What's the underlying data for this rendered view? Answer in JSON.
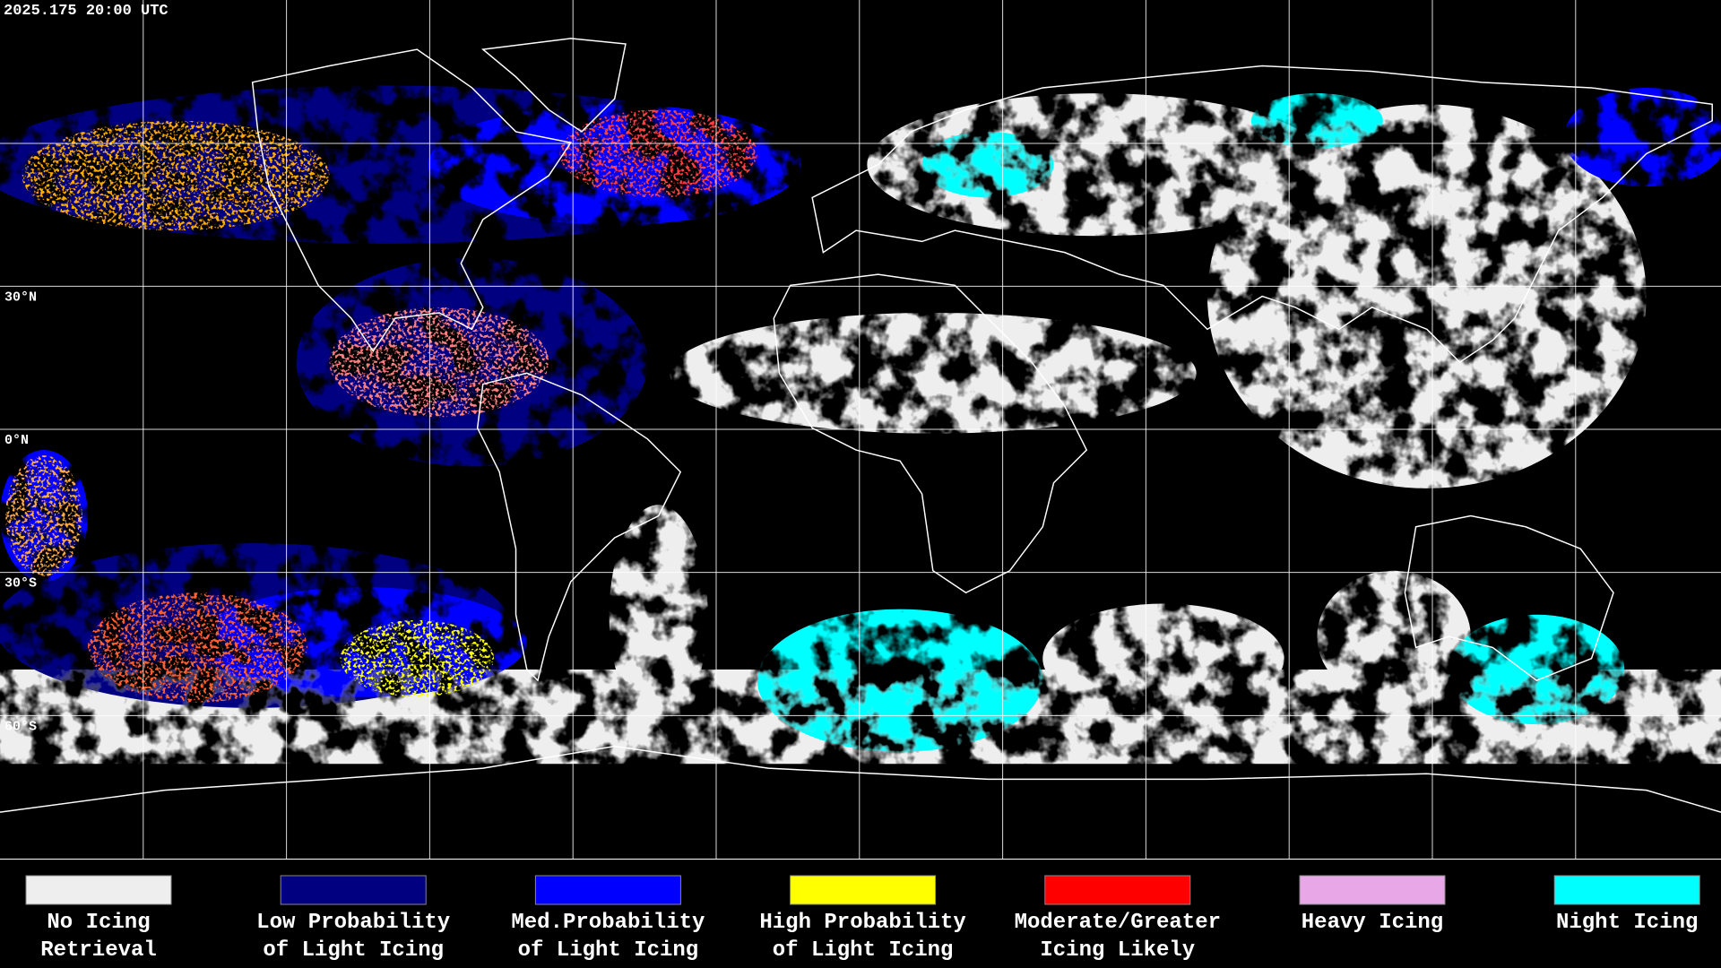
{
  "header": {
    "timestamp": "2025.175 20:00 UTC"
  },
  "map": {
    "latitude_labels": [
      {
        "value": 30,
        "label": "30°N"
      },
      {
        "value": 0,
        "label": "0°N"
      },
      {
        "value": -30,
        "label": "30°S"
      },
      {
        "value": -60,
        "label": "60°S"
      }
    ]
  },
  "legend": [
    {
      "color": "#eeeeee",
      "label": [
        "No Icing",
        "Retrieval"
      ]
    },
    {
      "color": "#000080",
      "label": [
        "Low Probability",
        "of Light Icing"
      ]
    },
    {
      "color": "#0000ff",
      "label": [
        "Med.Probability",
        "of Light Icing"
      ]
    },
    {
      "color": "#ffff00",
      "label": [
        "High Probability",
        "of Light Icing"
      ]
    },
    {
      "color": "#ff0000",
      "label": [
        "Moderate/Greater",
        "Icing Likely"
      ]
    },
    {
      "color": "#e8a8e8",
      "label": [
        "Heavy Icing"
      ]
    },
    {
      "color": "#00ffff",
      "label": [
        "Night Icing"
      ]
    }
  ]
}
